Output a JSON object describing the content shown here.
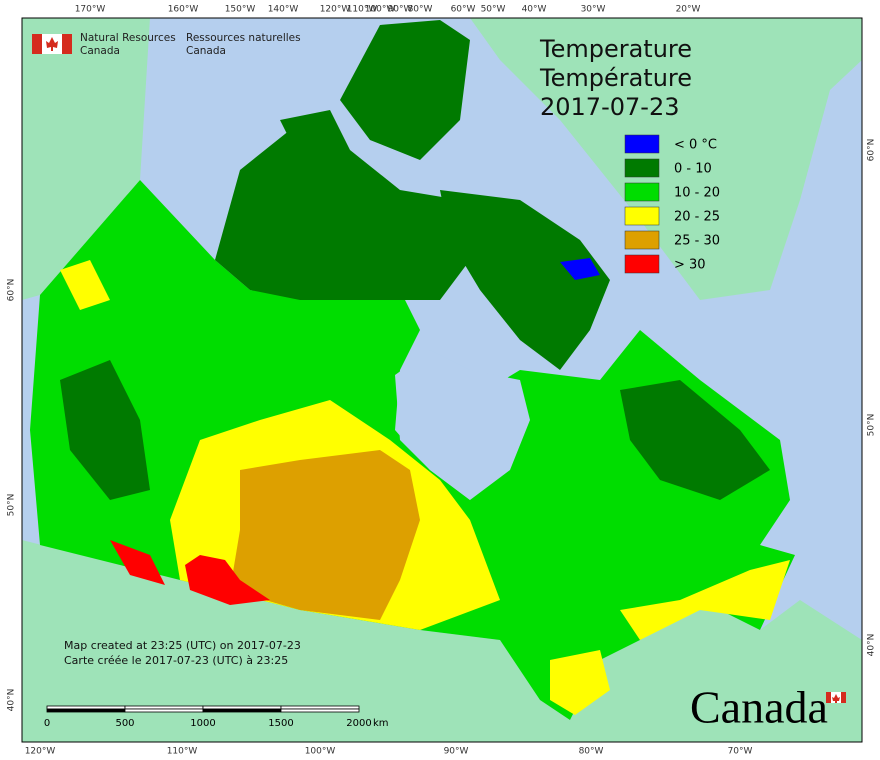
{
  "header": {
    "agency_en": [
      "Natural Resources",
      "Canada"
    ],
    "agency_fr": [
      "Ressources naturelles",
      "Canada"
    ]
  },
  "title": {
    "en": "Temperature",
    "fr": "Température",
    "date": "2017-07-23"
  },
  "legend": [
    {
      "label": "< 0 °C",
      "color": "#0000ff"
    },
    {
      "label": "0 - 10",
      "color": "#007a00"
    },
    {
      "label": "10 - 20",
      "color": "#00dd00"
    },
    {
      "label": "20 - 25",
      "color": "#ffff00"
    },
    {
      "label": "25 - 30",
      "color": "#dda000"
    },
    {
      "label": "> 30",
      "color": "#ff0000"
    }
  ],
  "notes": [
    "Map created at 23:25 (UTC) on 2017-07-23",
    "Carte créée le 2017-07-23 (UTC) à 23:25"
  ],
  "scale_bar": {
    "labels": [
      "0",
      "500",
      "1000",
      "1500",
      "2000"
    ],
    "unit": "km"
  },
  "graticule": {
    "top": [
      "170°W",
      "160°W",
      "150°W",
      "140°W",
      "120°W",
      "110°W",
      "100°W",
      "90°W",
      "80°W",
      "60°W",
      "50°W",
      "40°W",
      "30°W",
      "20°W"
    ],
    "bottom": [
      "120°W",
      "110°W",
      "100°W",
      "90°W",
      "80°W",
      "70°W"
    ],
    "left": [
      "60°N",
      "50°N",
      "40°N"
    ],
    "right": [
      "60°N",
      "50°N",
      "40°N"
    ]
  },
  "wordmark": "Canada"
}
